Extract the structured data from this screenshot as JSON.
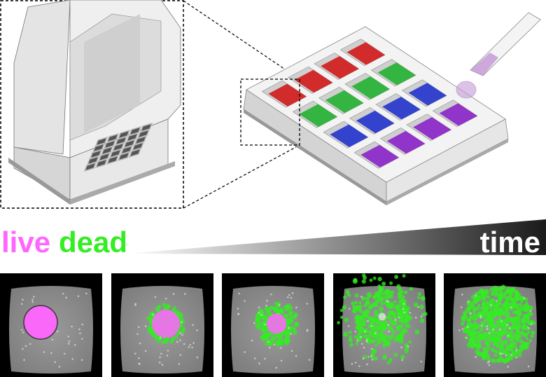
{
  "labels": {
    "live": "live",
    "dead": "dead",
    "time": "time"
  },
  "colors": {
    "live": "#ff66ff",
    "dead": "#33ee22",
    "well_rows": [
      "#d01818",
      "#22b030",
      "#2233cc",
      "#8a22c8"
    ],
    "pipette_liquid": "#c59ad8"
  },
  "panels": [
    {
      "stage": 1,
      "live_fraction": 1.0
    },
    {
      "stage": 2,
      "live_fraction": 0.7
    },
    {
      "stage": 3,
      "live_fraction": 0.35
    },
    {
      "stage": 4,
      "live_fraction": 0.05
    },
    {
      "stage": 5,
      "live_fraction": 0.0
    }
  ]
}
